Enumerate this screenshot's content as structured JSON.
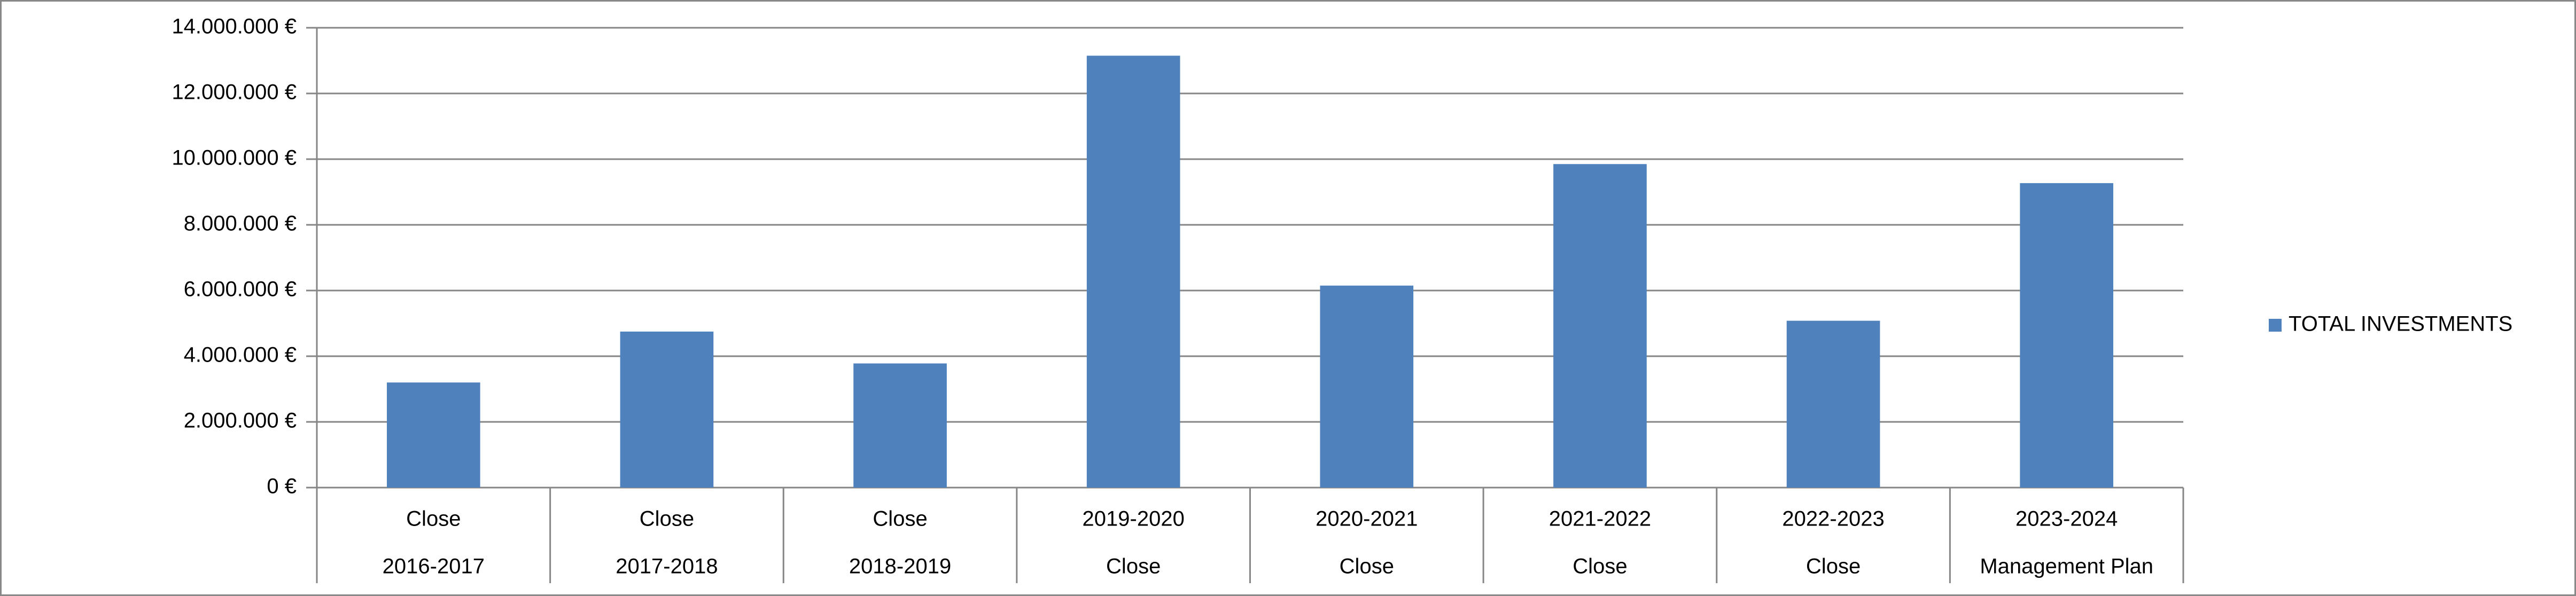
{
  "chart_data": {
    "type": "bar",
    "categories": [
      [
        "Close",
        "2016-2017"
      ],
      [
        "Close",
        "2017-2018"
      ],
      [
        "Close",
        "2018-2019"
      ],
      [
        "2019-2020",
        "Close"
      ],
      [
        "2020-2021",
        "Close"
      ],
      [
        "2021-2022",
        "Close"
      ],
      [
        "2022-2023",
        "Close"
      ],
      [
        "2023-2024",
        "Management Plan"
      ]
    ],
    "series": [
      {
        "name": "TOTAL INVESTMENTS",
        "color": "#4f81bd",
        "values": [
          3200000,
          4750000,
          3780000,
          13150000,
          6150000,
          9850000,
          5080000,
          9270000
        ]
      }
    ],
    "ylim": [
      0,
      14000000
    ],
    "yticks": [
      {
        "value": 0,
        "label": "0 €"
      },
      {
        "value": 2000000,
        "label": "2.000.000 €"
      },
      {
        "value": 4000000,
        "label": "4.000.000 €"
      },
      {
        "value": 6000000,
        "label": "6.000.000 €"
      },
      {
        "value": 8000000,
        "label": "8.000.000 €"
      },
      {
        "value": 10000000,
        "label": "10.000.000 €"
      },
      {
        "value": 12000000,
        "label": "12.000.000 €"
      },
      {
        "value": 14000000,
        "label": "14.000.000 €"
      }
    ],
    "grid": true,
    "legend": "right"
  }
}
